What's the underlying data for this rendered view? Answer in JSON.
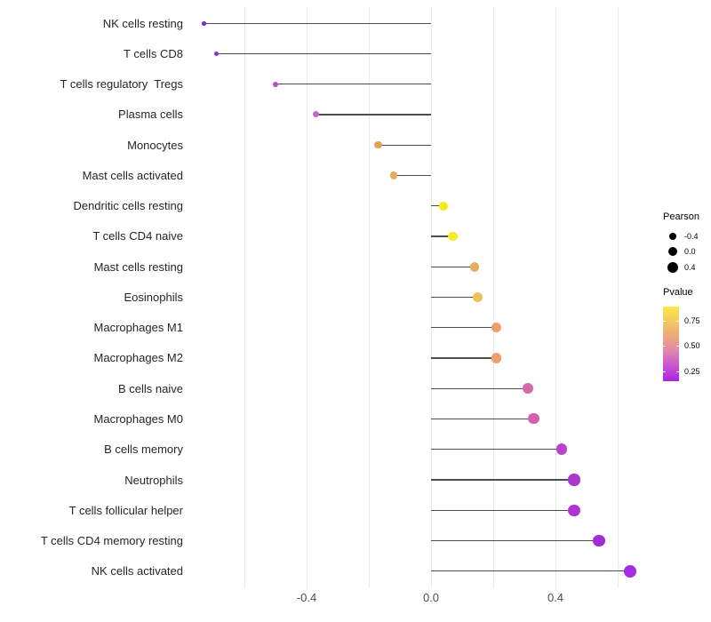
{
  "chart_data": {
    "type": "lollipop",
    "title": "",
    "xlabel": "",
    "ylabel": "",
    "x_ticks": [
      {
        "value": -0.4,
        "label": "-0.4"
      },
      {
        "value": 0.0,
        "label": "0.0"
      },
      {
        "value": 0.4,
        "label": "0.4"
      }
    ],
    "gridline_values": [
      -0.6,
      -0.4,
      -0.2,
      0.0,
      0.2,
      0.4,
      0.6
    ],
    "xlim": [
      -0.78,
      0.66
    ],
    "grid": true,
    "stem_color": "#4d4d4d",
    "gridline_color": "#ebebeb",
    "points": [
      {
        "label": "NK cells resting",
        "pearson": -0.73,
        "color": "#7f2be0"
      },
      {
        "label": "T cells CD8",
        "pearson": -0.69,
        "color": "#8d2bdb"
      },
      {
        "label": "T cells regulatory  Tregs",
        "pearson": -0.5,
        "color": "#b750cb"
      },
      {
        "label": "Plasma cells",
        "pearson": -0.37,
        "color": "#c466c6"
      },
      {
        "label": "Monocytes",
        "pearson": -0.17,
        "color": "#e5a157"
      },
      {
        "label": "Mast cells activated",
        "pearson": -0.12,
        "color": "#e9ae58"
      },
      {
        "label": "Dendritic cells resting",
        "pearson": 0.04,
        "color": "#f3ea16"
      },
      {
        "label": "T cells CD4 naive",
        "pearson": 0.07,
        "color": "#f5ec28"
      },
      {
        "label": "Mast cells resting",
        "pearson": 0.14,
        "color": "#e6ae5d"
      },
      {
        "label": "Eosinophils",
        "pearson": 0.15,
        "color": "#ecc156"
      },
      {
        "label": "Macrophages M1",
        "pearson": 0.21,
        "color": "#ee9f6b"
      },
      {
        "label": "Macrophages M2",
        "pearson": 0.21,
        "color": "#ee9f6b"
      },
      {
        "label": "B cells naive",
        "pearson": 0.31,
        "color": "#d369ab"
      },
      {
        "label": "Macrophages M0",
        "pearson": 0.33,
        "color": "#d162ab"
      },
      {
        "label": "B cells memory",
        "pearson": 0.42,
        "color": "#b944c8"
      },
      {
        "label": "Neutrophils",
        "pearson": 0.46,
        "color": "#ad36d0"
      },
      {
        "label": "T cells follicular helper",
        "pearson": 0.46,
        "color": "#ad36d0"
      },
      {
        "label": "T cells CD4 memory resting",
        "pearson": 0.54,
        "color": "#a02cd8"
      },
      {
        "label": "NK cells activated",
        "pearson": 0.64,
        "color": "#a32ce4"
      }
    ],
    "legend": {
      "size": {
        "title": "Pearson",
        "entries": [
          {
            "label": "-0.4",
            "value": -0.4
          },
          {
            "label": "0.0",
            "value": 0.0
          },
          {
            "label": "0.4",
            "value": 0.4
          }
        ]
      },
      "color": {
        "title": "Pvalue",
        "ticks": [
          {
            "label": "0.75",
            "offset": 16
          },
          {
            "label": "0.50",
            "offset": 44
          },
          {
            "label": "0.25",
            "offset": 73
          }
        ],
        "gradient_top_to_bottom": [
          "#f9e84b",
          "#f3c95f",
          "#eba87c",
          "#df85ae",
          "#c852cf",
          "#ab22e0"
        ]
      }
    }
  }
}
